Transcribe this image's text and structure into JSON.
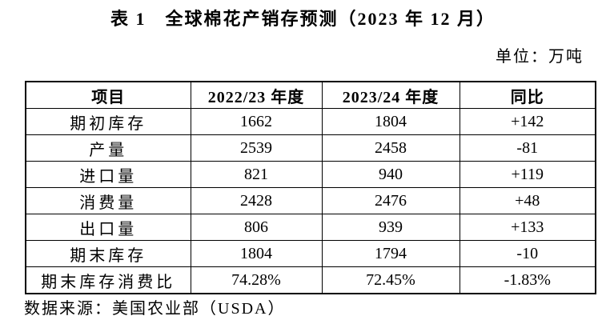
{
  "page": {
    "title": "表 1　全球棉花产销存预测（2023 年 12 月）",
    "unit_label": "单位：万吨",
    "source_note": "数据来源：美国农业部（USDA）"
  },
  "table": {
    "headers": [
      "项目",
      "2022/23 年度",
      "2023/24 年度",
      "同比"
    ],
    "rows": [
      {
        "item": "期初库存",
        "y2022_23": "1662",
        "y2023_24": "1804",
        "yoy": "+142"
      },
      {
        "item": "产量",
        "y2022_23": "2539",
        "y2023_24": "2458",
        "yoy": "-81"
      },
      {
        "item": "进口量",
        "y2022_23": "821",
        "y2023_24": "940",
        "yoy": "+119"
      },
      {
        "item": "消费量",
        "y2022_23": "2428",
        "y2023_24": "2476",
        "yoy": "+48"
      },
      {
        "item": "出口量",
        "y2022_23": "806",
        "y2023_24": "939",
        "yoy": "+133"
      },
      {
        "item": "期末库存",
        "y2022_23": "1804",
        "y2023_24": "1794",
        "yoy": "-10"
      },
      {
        "item": "期末库存消费比",
        "y2022_23": "74.28%",
        "y2023_24": "72.45%",
        "yoy": "-1.83%"
      }
    ]
  },
  "chart_data": {
    "type": "table",
    "title": "表 1 全球棉花产销存预测（2023 年 12 月）",
    "unit": "万吨",
    "columns": [
      "项目",
      "2022/23 年度",
      "2023/24 年度",
      "同比"
    ],
    "categories": [
      "期初库存",
      "产量",
      "进口量",
      "消费量",
      "出口量",
      "期末库存",
      "期末库存消费比"
    ],
    "series": [
      {
        "name": "2022/23 年度",
        "values": [
          1662,
          2539,
          821,
          2428,
          806,
          1804,
          "74.28%"
        ]
      },
      {
        "name": "2023/24 年度",
        "values": [
          1804,
          2458,
          940,
          2476,
          939,
          1794,
          "72.45%"
        ]
      },
      {
        "name": "同比",
        "values": [
          "+142",
          "-81",
          "+119",
          "+48",
          "+133",
          "-10",
          "-1.83%"
        ]
      }
    ],
    "source": "美国农业部（USDA）"
  },
  "colors": {
    "text": "#000000",
    "background": "#ffffff",
    "border": "#000000"
  }
}
